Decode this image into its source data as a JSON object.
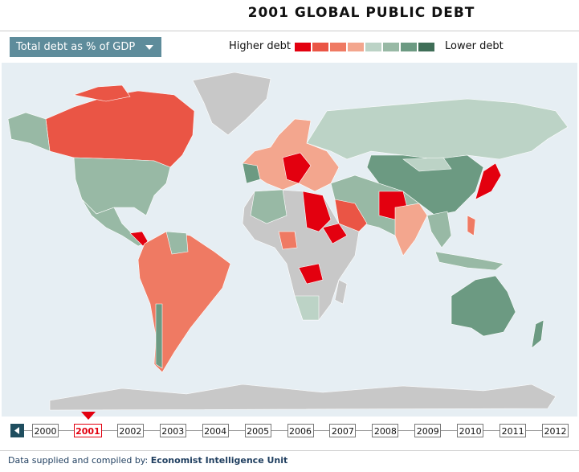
{
  "header": {
    "title": "2001 GLOBAL PUBLIC DEBT"
  },
  "controls": {
    "dropdown": "Total debt as % of GDP"
  },
  "legend": {
    "high_label": "Higher debt",
    "low_label": "Lower debt",
    "colors": [
      "#e3000f",
      "#ea5545",
      "#ef7a63",
      "#f3a68e",
      "#bcd3c6",
      "#98b9a5",
      "#6c9a82",
      "#3f6e57"
    ]
  },
  "timeline": {
    "years": [
      "2000",
      "2001",
      "2002",
      "2003",
      "2004",
      "2005",
      "2006",
      "2007",
      "2008",
      "2009",
      "2010",
      "2011",
      "2012"
    ],
    "selected_index": 1
  },
  "footer": {
    "text": "Data supplied and compiled by:",
    "source": "Economist Intelligence Unit"
  }
}
